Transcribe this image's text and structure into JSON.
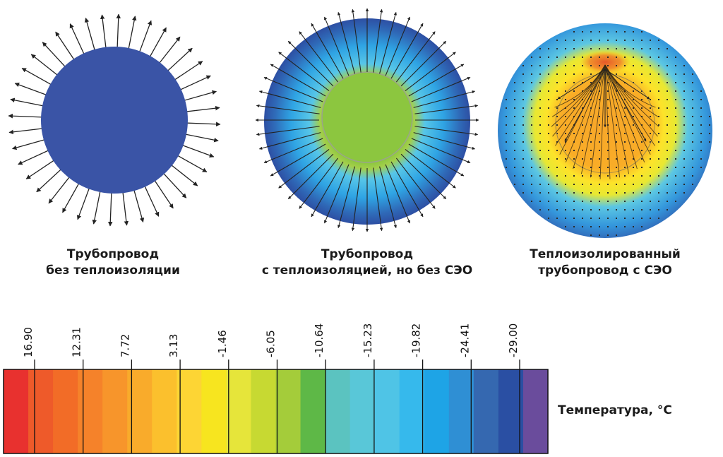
{
  "panels": [
    {
      "id": "no-insulation",
      "caption_lines": [
        "Трубопровод",
        "без теплоизоляции"
      ]
    },
    {
      "id": "insulation-no-seo",
      "caption_lines": [
        "Трубопровод",
        "с теплоизоляцией, но без СЭО"
      ]
    },
    {
      "id": "insulation-seo",
      "caption_lines": [
        "Теплоизолированный",
        "трубопровод с СЭО"
      ]
    }
  ],
  "scale": {
    "title": "Температура, °C",
    "ticks": [
      "16.90",
      "12.31",
      "7.72",
      "3.13",
      "-1.46",
      "-6.05",
      "-10.64",
      "-15.23",
      "-19.82",
      "-24.41",
      "-29.00"
    ],
    "colors": [
      "#e8312f",
      "#ee5a2a",
      "#f26c27",
      "#f5822a",
      "#f7952b",
      "#f9ab2b",
      "#fbc02d",
      "#fdd534",
      "#f7e51f",
      "#e6e53a",
      "#c7d932",
      "#a4cc3a",
      "#5eb847",
      "#5bc3c0",
      "#59c7d8",
      "#4fc4e6",
      "#36b9ec",
      "#1ea4e6",
      "#2f8fd4",
      "#3568b0",
      "#2a4fa3",
      "#6a4c9c"
    ]
  }
}
